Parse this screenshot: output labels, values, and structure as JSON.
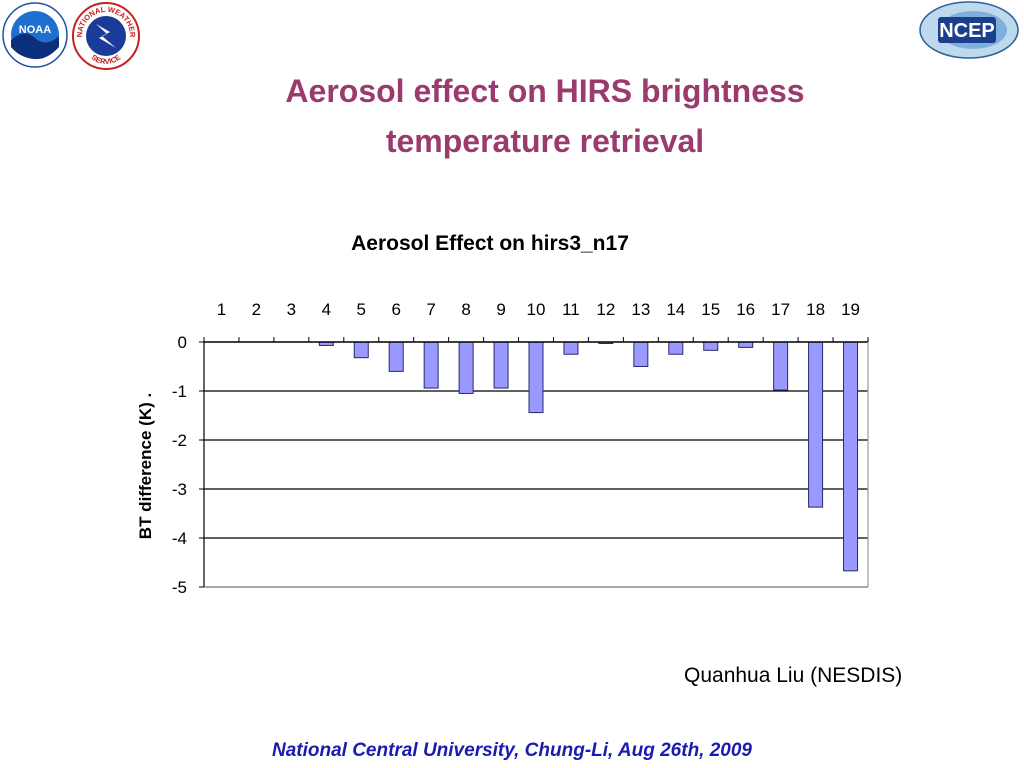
{
  "slide": {
    "title_line1": "Aerosol effect on HIRS brightness",
    "title_line2": "temperature retrieval",
    "credit": "Quanhua Liu (NESDIS)",
    "footer": "National Central University, Chung-Li, Aug 26th, 2009",
    "logos": {
      "noaa": "NOAA",
      "nws_top": "NATIONAL WEATHER",
      "nws_bottom": "SERVICE",
      "ncep": "NCEP"
    }
  },
  "colors": {
    "title": "#9b3a6d",
    "footer": "#1b1bb0",
    "bar_fill": "#9999ff",
    "bar_stroke": "#2a2a6a"
  },
  "chart_data": {
    "type": "bar",
    "title": "Aerosol Effect on hirs3_n17",
    "ylabel": "BT difference (K) .",
    "xlabel": "",
    "categories": [
      "1",
      "2",
      "3",
      "4",
      "5",
      "6",
      "7",
      "8",
      "9",
      "10",
      "11",
      "12",
      "13",
      "14",
      "15",
      "16",
      "17",
      "18",
      "19"
    ],
    "values": [
      0,
      0,
      0,
      -0.07,
      -0.32,
      -0.6,
      -0.94,
      -1.05,
      -0.94,
      -1.44,
      -0.25,
      -0.03,
      -0.5,
      -0.25,
      -0.17,
      -0.11,
      -0.98,
      -3.37,
      -4.67
    ],
    "ylim": [
      -5,
      0
    ],
    "yticks": [
      "0",
      "-1",
      "-2",
      "-3",
      "-4",
      "-5"
    ],
    "ytick_values": [
      0,
      -1,
      -2,
      -3,
      -4,
      -5
    ],
    "x_tick_position": "top",
    "grid": true,
    "legend": "none"
  }
}
